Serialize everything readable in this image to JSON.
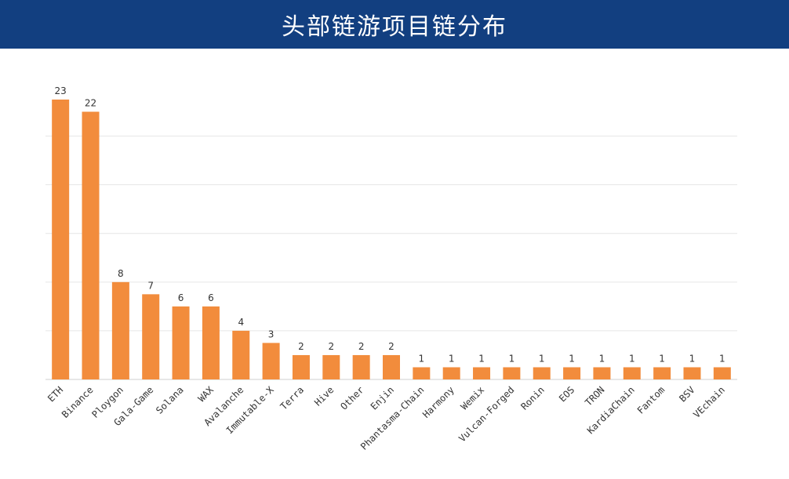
{
  "header": {
    "title": "头部链游项目链分布"
  },
  "colors": {
    "header_bg": "#123f80",
    "bar": "#f28c3c",
    "grid": "#e6e6e6",
    "axis": "#cfcfcf"
  },
  "chart_data": {
    "type": "bar",
    "title": "头部链游项目链分布",
    "categories": [
      "ETH",
      "Binance",
      "Ploygon",
      "Gala-Game",
      "Solana",
      "WAX",
      "Avalanche",
      "Immutable-X",
      "Terra",
      "Hive",
      "Other",
      "Enjin",
      "Phantasma-Chain",
      "Harmony",
      "Wemix",
      "Vulcan-Forged",
      "Ronin",
      "EOS",
      "TRON",
      "KardiaChain",
      "Fantom",
      "BSV",
      "VEchain"
    ],
    "values": [
      23,
      22,
      8,
      7,
      6,
      6,
      4,
      3,
      2,
      2,
      2,
      2,
      1,
      1,
      1,
      1,
      1,
      1,
      1,
      1,
      1,
      1,
      1
    ],
    "ylim": [
      0,
      23
    ],
    "grid": true,
    "legend": "none",
    "data_labels": true
  }
}
